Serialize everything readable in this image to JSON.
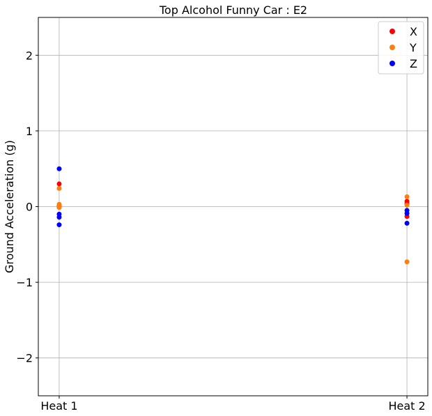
{
  "chart_data": {
    "type": "scatter",
    "title": "Top Alcohol Funny Car : E2",
    "xlabel": "",
    "ylabel": "Ground Acceleration (g)",
    "categories": [
      "Heat 1",
      "Heat 2"
    ],
    "xlim": [
      -0.06,
      1.06
    ],
    "ylim": [
      -2.5,
      2.5
    ],
    "yticks": [
      -2,
      -1,
      0,
      1,
      2
    ],
    "ytick_labels": [
      "−2",
      "−1",
      "0",
      "1",
      "2"
    ],
    "grid": true,
    "legend_position": "top-right",
    "series": [
      {
        "name": "X",
        "color": "#ff0000",
        "points": [
          {
            "x": 0,
            "y": 0.3
          },
          {
            "x": 0,
            "y": 0.01
          },
          {
            "x": 0,
            "y": -0.01
          },
          {
            "x": 1,
            "y": 0.07
          },
          {
            "x": 1,
            "y": 0.04
          },
          {
            "x": 1,
            "y": -0.13
          }
        ]
      },
      {
        "name": "Y",
        "color": "#ff7f0e",
        "points": [
          {
            "x": 0,
            "y": 0.24
          },
          {
            "x": 0,
            "y": 0.03
          },
          {
            "x": 0,
            "y": -0.01
          },
          {
            "x": 1,
            "y": 0.13
          },
          {
            "x": 1,
            "y": 0.02
          },
          {
            "x": 1,
            "y": -0.73
          }
        ]
      },
      {
        "name": "Z",
        "color": "#0000ff",
        "points": [
          {
            "x": 0,
            "y": 0.5
          },
          {
            "x": 0,
            "y": -0.1
          },
          {
            "x": 0,
            "y": -0.14
          },
          {
            "x": 0,
            "y": -0.24
          },
          {
            "x": 1,
            "y": -0.05
          },
          {
            "x": 1,
            "y": -0.09
          },
          {
            "x": 1,
            "y": -0.22
          }
        ]
      }
    ]
  }
}
